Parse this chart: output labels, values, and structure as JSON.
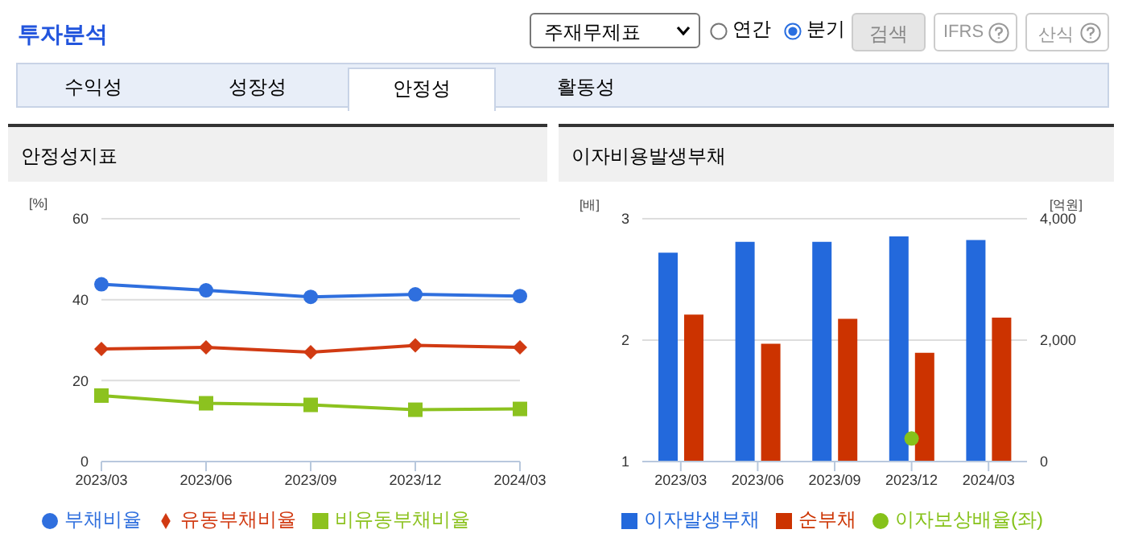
{
  "chart_data": [
    {
      "type": "other",
      "title": "투자분석",
      "annotations": [
        "주재무제표",
        "연간",
        "분기",
        "검색",
        "IFRS",
        "산식",
        "수익성",
        "성장성",
        "안정성",
        "활동성"
      ]
    },
    {
      "type": "line",
      "title": "안정성지표",
      "ylabel": "[%]",
      "categories": [
        "2023/03",
        "2023/06",
        "2023/09",
        "2023/12",
        "2024/03"
      ],
      "series": [
        {
          "name": "부채비율",
          "color": "#2f6fde",
          "marker": "circle",
          "values": [
            43.8,
            42.3,
            40.7,
            41.3,
            40.9
          ]
        },
        {
          "name": "유동부채비율",
          "color": "#d13a12",
          "marker": "diamond",
          "values": [
            27.8,
            28.2,
            27.0,
            28.7,
            28.2
          ]
        },
        {
          "name": "비유동부채비율",
          "color": "#8cc21f",
          "marker": "square",
          "values": [
            16.3,
            14.4,
            14.0,
            12.8,
            13.0
          ]
        }
      ],
      "ylim": [
        0,
        60
      ],
      "yticks": [
        0,
        20,
        40,
        60
      ],
      "grid": "y",
      "legend": "bottom"
    },
    {
      "type": "bar",
      "title": "이자비용발생부채",
      "ylabel": "[배]",
      "y2label": "[억원]",
      "categories": [
        "2023/03",
        "2023/06",
        "2023/09",
        "2023/12",
        "2024/03"
      ],
      "series": [
        {
          "name": "이자발생부채",
          "color": "#2369dc",
          "axis": "y2",
          "values": [
            3440,
            3620,
            3620,
            3710,
            3650
          ]
        },
        {
          "name": "순부채",
          "color": "#cc3300",
          "axis": "y2",
          "values": [
            2420,
            1940,
            2350,
            1790,
            2370
          ]
        },
        {
          "name": "이자보상배율(좌)",
          "type": "line",
          "color": "#86c21a",
          "marker": "circle",
          "axis": "y",
          "values": [
            null,
            null,
            null,
            1.19,
            null
          ]
        }
      ],
      "ylim": [
        1,
        3
      ],
      "yticks": [
        1,
        2,
        3
      ],
      "y2lim": [
        0,
        4000
      ],
      "y2ticks": [
        0,
        {
          "value": 2000,
          "label": "2,000"
        },
        {
          "value": 4000,
          "label": "4,000"
        }
      ],
      "grid": "y",
      "legend": "bottom"
    }
  ]
}
